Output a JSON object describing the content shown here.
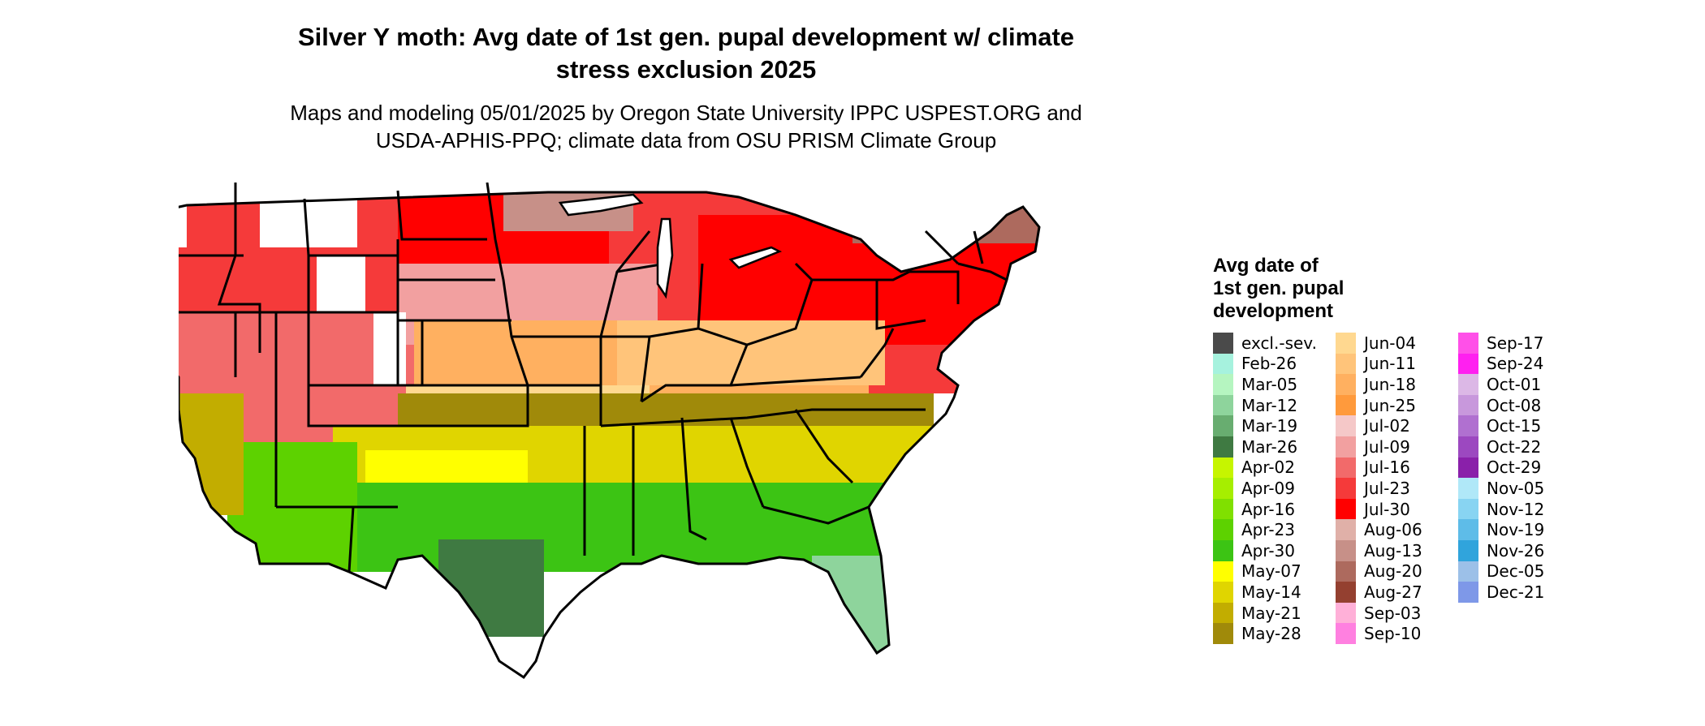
{
  "title_lines": [
    "Silver Y moth: Avg date of 1st gen. pupal development w/ climate",
    "stress exclusion 2025"
  ],
  "subtitle_lines": [
    "Maps and modeling 05/01/2025 by Oregon State University IPPC USPEST.ORG and",
    "USDA-APHIS-PPQ; climate data from OSU PRISM Climate Group"
  ],
  "legend": {
    "title_lines": [
      "Avg date of",
      "1st gen. pupal",
      "development"
    ],
    "columns": [
      [
        {
          "label": "excl.-sev.",
          "color": "#4a4a4a"
        },
        {
          "label": "Feb-26",
          "color": "#a6f2de"
        },
        {
          "label": "Mar-05",
          "color": "#b5f5c0"
        },
        {
          "label": "Mar-12",
          "color": "#8ed49c"
        },
        {
          "label": "Mar-19",
          "color": "#68ad70"
        },
        {
          "label": "Mar-26",
          "color": "#3f7a42"
        },
        {
          "label": "Apr-02",
          "color": "#c6f500"
        },
        {
          "label": "Apr-09",
          "color": "#a6ee00"
        },
        {
          "label": "Apr-16",
          "color": "#80e000"
        },
        {
          "label": "Apr-23",
          "color": "#5dd200"
        },
        {
          "label": "Apr-30",
          "color": "#3cc414"
        },
        {
          "label": "May-07",
          "color": "#ffff00"
        },
        {
          "label": "May-14",
          "color": "#e0d500"
        },
        {
          "label": "May-21",
          "color": "#c2ad00"
        },
        {
          "label": "May-28",
          "color": "#a08a0a"
        }
      ],
      [
        {
          "label": "Jun-04",
          "color": "#ffd890"
        },
        {
          "label": "Jun-11",
          "color": "#ffc47a"
        },
        {
          "label": "Jun-18",
          "color": "#ffb060"
        },
        {
          "label": "Jun-25",
          "color": "#ff9a3c"
        },
        {
          "label": "Jul-02",
          "color": "#f5c8c8"
        },
        {
          "label": "Jul-09",
          "color": "#f2a0a0"
        },
        {
          "label": "Jul-16",
          "color": "#f26a6a"
        },
        {
          "label": "Jul-23",
          "color": "#f53a3a"
        },
        {
          "label": "Jul-30",
          "color": "#ff0000"
        },
        {
          "label": "Aug-06",
          "color": "#e0b0a8"
        },
        {
          "label": "Aug-13",
          "color": "#c79088"
        },
        {
          "label": "Aug-20",
          "color": "#ad6a5e"
        },
        {
          "label": "Aug-27",
          "color": "#944030"
        },
        {
          "label": "Sep-03",
          "color": "#ffb0d8"
        },
        {
          "label": "Sep-10",
          "color": "#ff80e0"
        }
      ],
      [
        {
          "label": "Sep-17",
          "color": "#ff50e8"
        },
        {
          "label": "Sep-24",
          "color": "#ff20f0"
        },
        {
          "label": "Oct-01",
          "color": "#dcb8e6"
        },
        {
          "label": "Oct-08",
          "color": "#c898dc"
        },
        {
          "label": "Oct-15",
          "color": "#b070d0"
        },
        {
          "label": "Oct-22",
          "color": "#9c48c0"
        },
        {
          "label": "Oct-29",
          "color": "#8a20aa"
        },
        {
          "label": "Nov-05",
          "color": "#b0e8f8"
        },
        {
          "label": "Nov-12",
          "color": "#88d4f2"
        },
        {
          "label": "Nov-19",
          "color": "#5ebce8"
        },
        {
          "label": "Nov-26",
          "color": "#30a4dc"
        },
        {
          "label": "Dec-05",
          "color": "#9cc0e8"
        },
        {
          "label": "Dec-21",
          "color": "#7e98e8"
        }
      ]
    ]
  },
  "map": {
    "region_colors": {
      "northwest": "#f53a3a",
      "northern_rockies_peaks": "#ff80e0",
      "mountain_snow": "#ffffff",
      "northern_plains": "#ff0000",
      "upper_midwest": "#f2a0a0",
      "lake_states_north": "#c79088",
      "central_plains": "#ffb060",
      "ohio_valley": "#ffc47a",
      "mid_south": "#a08a0a",
      "deep_south": "#e0d500",
      "gulf_coast": "#3cc414",
      "south_texas": "#3f7a42",
      "south_florida": "#8ed49c",
      "southwest_desert": "#5dd200",
      "california_valley": "#c2ad00",
      "northeast": "#ff0000",
      "new_england_north": "#ad6a5e",
      "great_basin": "#f26a6a",
      "southern_plains": "#ffd890",
      "texas_central": "#ffff00",
      "great_lakes_water": "#ffffff"
    }
  }
}
